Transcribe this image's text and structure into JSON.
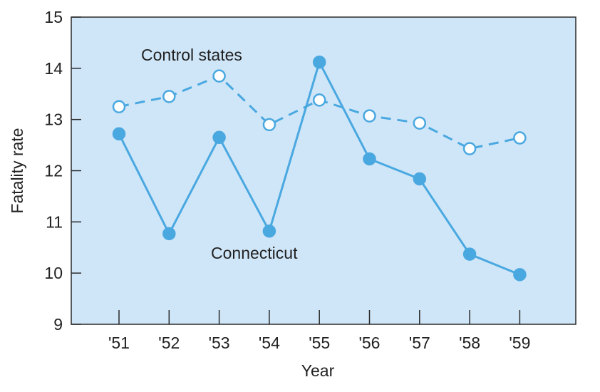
{
  "chart_data": {
    "type": "line",
    "title": "",
    "xlabel": "Year",
    "ylabel": "Fatality rate",
    "categories": [
      "'51",
      "'52",
      "'53",
      "'54",
      "'55",
      "'56",
      "'57",
      "'58",
      "'59"
    ],
    "ylim": [
      9,
      15
    ],
    "yticks": [
      "9",
      "10",
      "11",
      "12",
      "13",
      "14",
      "15"
    ],
    "grid": false,
    "background_color": "#cfe6f8",
    "series_color": "#4aa8e0",
    "series": [
      {
        "name": "Control states",
        "style": "dashed, open circle markers",
        "values": [
          13.25,
          13.45,
          13.85,
          12.9,
          13.38,
          13.07,
          12.93,
          12.43,
          12.64
        ]
      },
      {
        "name": "Connecticut",
        "style": "solid, filled circle markers",
        "values": [
          12.72,
          10.77,
          12.65,
          10.82,
          14.12,
          12.23,
          11.84,
          10.37,
          9.97
        ]
      }
    ]
  }
}
